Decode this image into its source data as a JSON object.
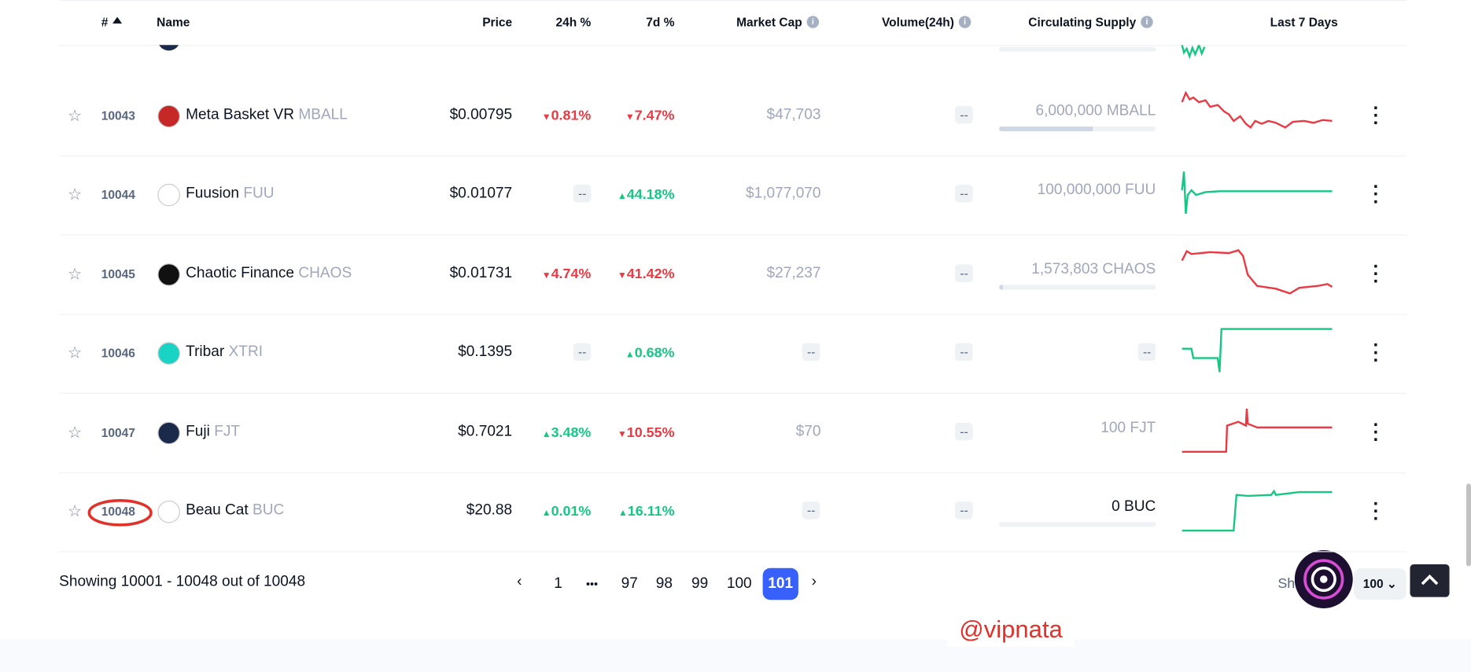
{
  "header": {
    "columns": [
      "#",
      "Name",
      "Price",
      "24h %",
      "7d %",
      "Market Cap",
      "Volume(24h)",
      "Circulating Supply",
      "Last 7 Days"
    ]
  },
  "rows": [
    {
      "rank": "10043",
      "name": "Meta Basket VR",
      "symbol": "MBALL",
      "price": "$0.00795",
      "change_24h": {
        "text": "0.81%",
        "direction": "down"
      },
      "change_7d": {
        "text": "7.47%",
        "direction": "down"
      },
      "market_cap": "$47,703",
      "volume": "--",
      "supply": "6,000,000 MBALL"
    },
    {
      "rank": "10044",
      "name": "Fuusion",
      "symbol": "FUU",
      "price": "$0.01077",
      "change_24h": {
        "text": "--"
      },
      "change_7d": {
        "text": "44.18%",
        "direction": "up"
      },
      "market_cap": "$1,077,070",
      "volume": "--",
      "supply": "100,000,000 FUU"
    },
    {
      "rank": "10045",
      "name": "Chaotic Finance",
      "symbol": "CHAOS",
      "price": "$0.01731",
      "change_24h": {
        "text": "4.74%",
        "direction": "down"
      },
      "change_7d": {
        "text": "41.42%",
        "direction": "down"
      },
      "market_cap": "$27,237",
      "volume": "--",
      "supply": "1,573,803 CHAOS"
    },
    {
      "rank": "10046",
      "name": "Tribar",
      "symbol": "XTRI",
      "price": "$0.1395",
      "change_24h": {
        "text": "--"
      },
      "change_7d": {
        "text": "0.68%",
        "direction": "up"
      },
      "market_cap": "--",
      "volume": "--",
      "supply": "--"
    },
    {
      "rank": "10047",
      "name": "Fuji",
      "symbol": "FJT",
      "price": "$0.7021",
      "change_24h": {
        "text": "3.48%",
        "direction": "up"
      },
      "change_7d": {
        "text": "10.55%",
        "direction": "down"
      },
      "market_cap": "$70",
      "volume": "--",
      "supply": "100 FJT"
    },
    {
      "rank": "10048",
      "name": "Beau Cat",
      "symbol": "BUC",
      "price": "$20.88",
      "change_24h": {
        "text": "0.01%",
        "direction": "up"
      },
      "change_7d": {
        "text": "16.11%",
        "direction": "up"
      },
      "market_cap": "--",
      "volume": "--",
      "supply": "0 BUC"
    }
  ],
  "footer": {
    "showing": "Showing 10001 - 10048 out of 10048",
    "pages": [
      "1",
      "•••",
      "97",
      "98",
      "99",
      "100",
      "101"
    ],
    "active_page": "101",
    "rows_label": "Sh",
    "rows_per_page": "100"
  },
  "watermark": "@vipnata"
}
